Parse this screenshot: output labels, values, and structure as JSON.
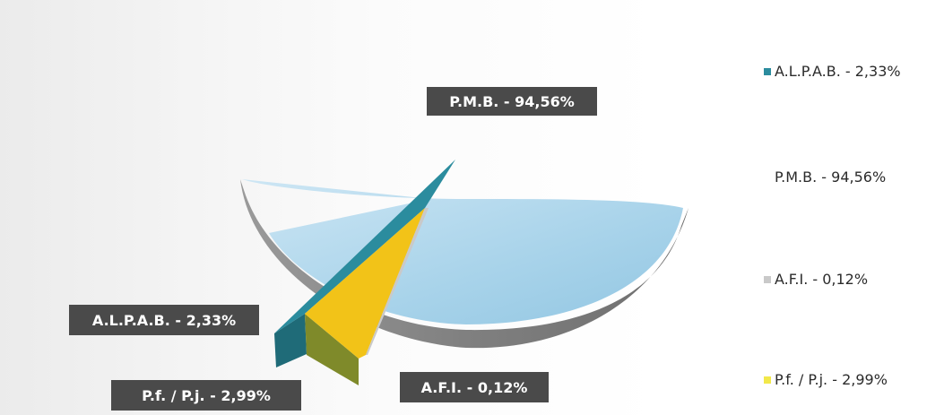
{
  "chart_data": {
    "type": "pie",
    "title": "",
    "slices": [
      {
        "label": "A.L.P.A.B. - 2,33%",
        "value": 2.33,
        "color": "#2b8c9e"
      },
      {
        "label": "P.M.B. - 94,56%",
        "value": 94.56,
        "color": "#a8d3ea"
      },
      {
        "label": "A.F.I. - 0,12%",
        "value": 0.12,
        "color": "#c9c9c9"
      },
      {
        "label": "P.f. / P.j. - 2,99%",
        "value": 2.99,
        "color": "#f2c318"
      }
    ],
    "data_labels": {
      "alpab": "A.L.P.A.B. - 2,33%",
      "pmb": "P.M.B. - 94,56%",
      "afi": "A.F.I. - 0,12%",
      "pfpj": "P.f. / P.j. - 2,99%"
    },
    "legend": {
      "position": "right",
      "items": [
        {
          "label": "A.L.P.A.B. - 2,33%",
          "color": "#2b8c9e"
        },
        {
          "label": "P.M.B. - 94,56%",
          "color": "#ffffff"
        },
        {
          "label": "A.F.I. - 0,12%",
          "color": "#c9c9c9"
        },
        {
          "label": "P.f. / P.j. - 2,99%",
          "color": "#f2e84a"
        }
      ]
    }
  }
}
